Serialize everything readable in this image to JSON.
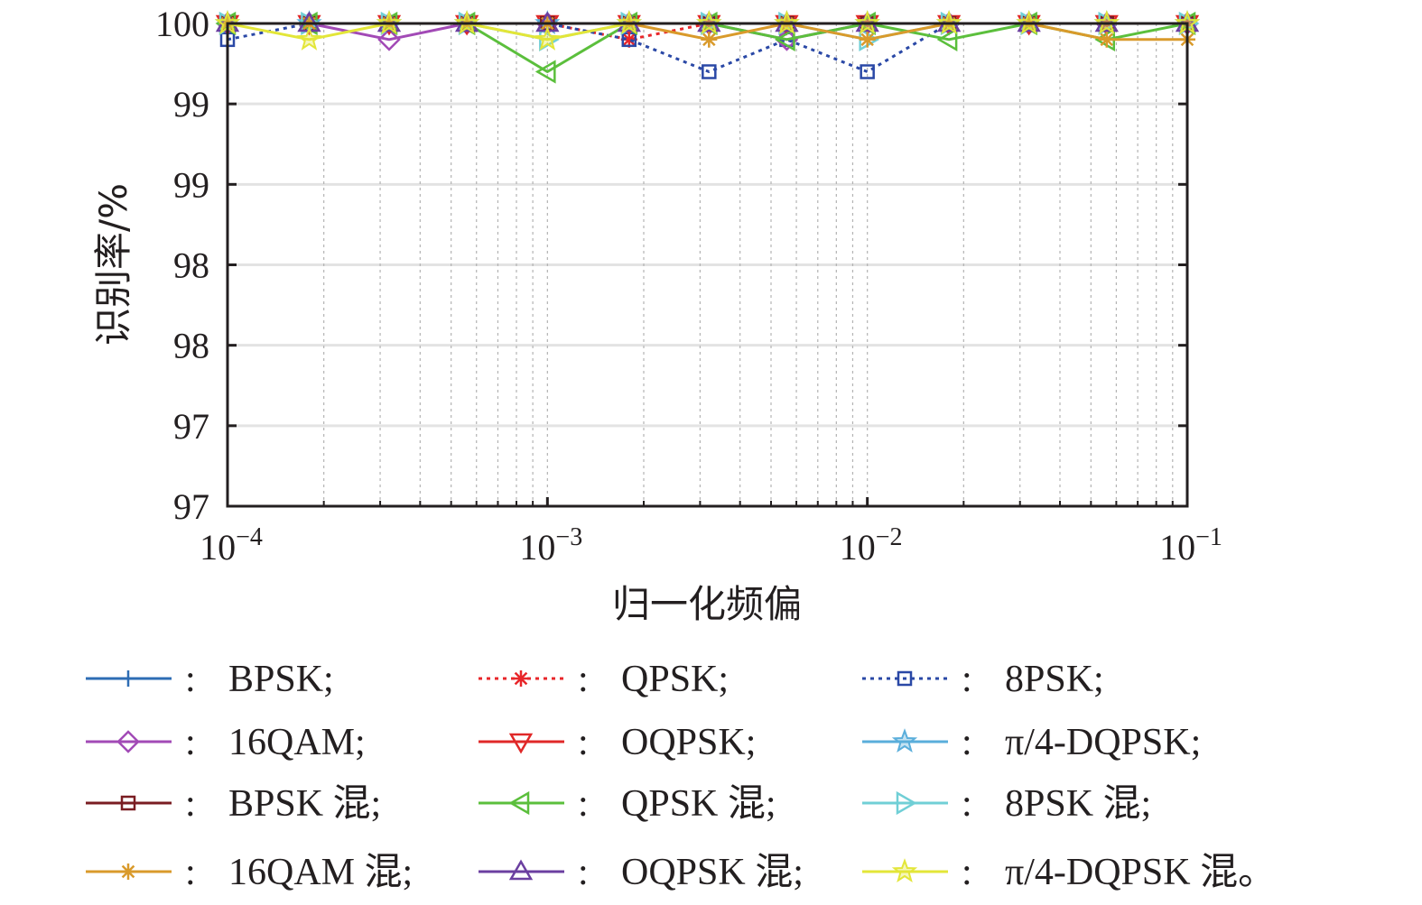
{
  "chart_data": {
    "type": "line",
    "title": "",
    "xlabel": "归一化频偏",
    "ylabel": "识别率/%",
    "xscale": "log",
    "xlim": [
      0.0001,
      0.1
    ],
    "ylim": [
      97,
      100
    ],
    "grid": true,
    "x_tick_labels": [
      {
        "base": "10",
        "exp": "−4"
      },
      {
        "base": "10",
        "exp": "−3"
      },
      {
        "base": "10",
        "exp": "−2"
      },
      {
        "base": "10",
        "exp": "−1"
      }
    ],
    "y_tick_labels": [
      "97",
      "97",
      "98",
      "98",
      "99",
      "99",
      "100"
    ],
    "legend_position": "bottom",
    "legend_separator": ":",
    "x": [
      0.0001,
      0.00018,
      0.00032,
      0.00056,
      0.001,
      0.0018,
      0.0032,
      0.0056,
      0.01,
      0.018,
      0.032,
      0.056,
      0.1
    ],
    "series": [
      {
        "name": "BPSK;",
        "color": "#2e6db4",
        "dash": "solid",
        "marker": "plus",
        "values": [
          100,
          100,
          100,
          100,
          100,
          100,
          100,
          100,
          100,
          100,
          100,
          100,
          100
        ]
      },
      {
        "name": "QPSK;",
        "color": "#e8262a",
        "dash": "dotted",
        "marker": "asterisk",
        "values": [
          100,
          100,
          100,
          100,
          100,
          99.9,
          100,
          100,
          100,
          100,
          100,
          100,
          100
        ]
      },
      {
        "name": "8PSK;",
        "color": "#2a48a6",
        "dash": "dotted",
        "marker": "square",
        "values": [
          99.9,
          100,
          100,
          100,
          100,
          99.9,
          99.7,
          99.9,
          99.7,
          100,
          100,
          100,
          100
        ]
      },
      {
        "name": "16QAM;",
        "color": "#a24ab6",
        "dash": "solid",
        "marker": "diamond",
        "values": [
          100,
          100,
          99.9,
          100,
          100,
          100,
          100,
          99.9,
          100,
          100,
          100,
          100,
          100
        ]
      },
      {
        "name": "OQPSK;",
        "color": "#e02828",
        "dash": "solid",
        "marker": "triangle-down",
        "values": [
          100,
          100,
          100,
          100,
          100,
          100,
          100,
          100,
          100,
          100,
          100,
          100,
          100
        ]
      },
      {
        "name": "π/4-DQPSK;",
        "color": "#5aaedb",
        "dash": "solid",
        "marker": "star",
        "values": [
          100,
          100,
          100,
          100,
          100,
          100,
          100,
          100,
          100,
          100,
          100,
          100,
          100
        ]
      },
      {
        "name": "BPSK 混;",
        "color": "#7a1d22",
        "dash": "solid",
        "marker": "square",
        "values": [
          100,
          100,
          100,
          100,
          100,
          100,
          100,
          100,
          100,
          100,
          100,
          100,
          100
        ]
      },
      {
        "name": "QPSK 混;",
        "color": "#5bbf3c",
        "dash": "solid",
        "marker": "triangle-left",
        "values": [
          100,
          100,
          100,
          100,
          99.7,
          100,
          100,
          99.9,
          100,
          99.9,
          100,
          99.9,
          100
        ]
      },
      {
        "name": "8PSK 混;",
        "color": "#70cfd6",
        "dash": "solid",
        "marker": "triangle-right",
        "values": [
          100,
          100,
          100,
          100,
          99.9,
          100,
          100,
          100,
          99.9,
          100,
          100,
          100,
          100
        ]
      },
      {
        "name": "16QAM 混;",
        "color": "#d99a2b",
        "dash": "solid",
        "marker": "asterisk",
        "values": [
          100,
          100,
          100,
          100,
          100,
          100,
          99.9,
          100,
          99.9,
          100,
          100,
          99.9,
          99.9
        ]
      },
      {
        "name": "OQPSK 混;",
        "color": "#6b3fa0",
        "dash": "solid",
        "marker": "triangle-up",
        "values": [
          100,
          100,
          100,
          100,
          100,
          100,
          100,
          100,
          100,
          100,
          100,
          100,
          100
        ]
      },
      {
        "name": "π/4-DQPSK 混。",
        "color": "#e3e638",
        "dash": "solid",
        "marker": "star",
        "values": [
          100,
          99.9,
          100,
          100,
          99.9,
          100,
          100,
          100,
          100,
          100,
          100,
          100,
          100
        ]
      }
    ]
  }
}
